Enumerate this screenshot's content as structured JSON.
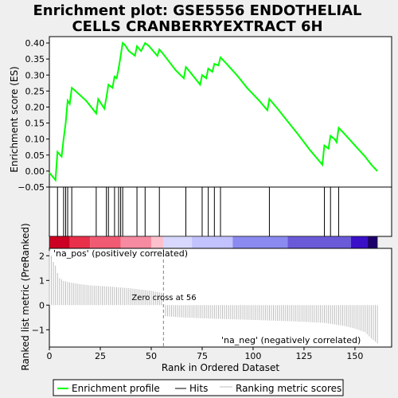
{
  "chart_data": {
    "type": "line",
    "title_line1": "Enrichment plot: GSE5556 ENDOTHELIAL",
    "title_line2": "CELLS CRANBERRYEXTRACT 6H",
    "xlabel": "Rank in Ordered Dataset",
    "ylabel_top": "Enrichment score (ES)",
    "ylabel_bottom": "Ranked list metric (PreRanked)",
    "xlim": [
      0,
      168
    ],
    "x_ticks": [
      "0",
      "25",
      "50",
      "75",
      "100",
      "125",
      "150"
    ],
    "es_ylim": [
      -0.05,
      0.42
    ],
    "es_y_ticks": [
      "−0.05",
      "0.00",
      "0.05",
      "0.10",
      "0.15",
      "0.20",
      "0.25",
      "0.30",
      "0.35",
      "0.40"
    ],
    "metric_ylim": [
      -1.7,
      2.3
    ],
    "metric_y_ticks": [
      "−1",
      "0",
      "1",
      "2"
    ],
    "es_curve": {
      "x": [
        0,
        3,
        4,
        6,
        7,
        8,
        9,
        10,
        11,
        12,
        18,
        23,
        24,
        27,
        28,
        29,
        31,
        32,
        33,
        34,
        35,
        36,
        37,
        39,
        42,
        43,
        45,
        47,
        49,
        51,
        53,
        54,
        56,
        59,
        62,
        66,
        67,
        69,
        74,
        75,
        77,
        78,
        80,
        81,
        83,
        84,
        87,
        92,
        97,
        103,
        107,
        108,
        112,
        117,
        122,
        128,
        134,
        135,
        137,
        138,
        140,
        141,
        142,
        145,
        150,
        155,
        158,
        161
      ],
      "y": [
        -0.005,
        -0.028,
        0.06,
        0.045,
        0.1,
        0.15,
        0.22,
        0.21,
        0.26,
        0.255,
        0.22,
        0.18,
        0.225,
        0.195,
        0.23,
        0.27,
        0.26,
        0.295,
        0.29,
        0.32,
        0.36,
        0.4,
        0.395,
        0.375,
        0.36,
        0.39,
        0.375,
        0.4,
        0.39,
        0.375,
        0.36,
        0.38,
        0.365,
        0.34,
        0.315,
        0.29,
        0.325,
        0.31,
        0.27,
        0.3,
        0.29,
        0.32,
        0.31,
        0.335,
        0.33,
        0.355,
        0.335,
        0.3,
        0.26,
        0.22,
        0.19,
        0.225,
        0.195,
        0.155,
        0.115,
        0.065,
        0.02,
        0.08,
        0.07,
        0.11,
        0.1,
        0.09,
        0.135,
        0.115,
        0.08,
        0.045,
        0.02,
        0.0
      ]
    },
    "hits": [
      4,
      7,
      8,
      9,
      11,
      23,
      28,
      29,
      32,
      34,
      35,
      36,
      43,
      47,
      54,
      67,
      75,
      78,
      81,
      84,
      108,
      135,
      138,
      142
    ],
    "metric_points": [
      [
        0,
        2.2
      ],
      [
        1,
        2.0
      ],
      [
        2,
        1.75
      ],
      [
        3,
        1.6
      ],
      [
        4,
        1.3
      ],
      [
        5,
        1.1
      ],
      [
        7,
        0.98
      ],
      [
        10,
        0.92
      ],
      [
        15,
        0.85
      ],
      [
        20,
        0.8
      ],
      [
        30,
        0.75
      ],
      [
        40,
        0.68
      ],
      [
        50,
        0.58
      ],
      [
        55,
        0.5
      ],
      [
        56,
        0.0
      ],
      [
        57,
        -0.45
      ],
      [
        65,
        -0.5
      ],
      [
        80,
        -0.55
      ],
      [
        100,
        -0.6
      ],
      [
        120,
        -0.66
      ],
      [
        135,
        -0.72
      ],
      [
        145,
        -0.85
      ],
      [
        150,
        -0.95
      ],
      [
        155,
        -1.1
      ],
      [
        158,
        -1.35
      ],
      [
        161,
        -1.55
      ]
    ],
    "zero_cross_rank": 56,
    "zero_cross_label": "Zero cross at 56",
    "pos_label": "'na_pos' (positively correlated)",
    "neg_label": "'na_neg' (negatively correlated)",
    "colors": {
      "es_line": "#00ff00",
      "hits": "#000000",
      "metric_bars": "#bebebe",
      "pos_label": "#cc0000",
      "neg_label": "#0000cc",
      "heat_segments": [
        [
          "#cc0022",
          0,
          10
        ],
        [
          "#e8304a",
          10,
          20
        ],
        [
          "#f05a72",
          20,
          35
        ],
        [
          "#f58aa0",
          35,
          50
        ],
        [
          "#fbc0cc",
          50,
          56
        ],
        [
          "#d8d8ff",
          56,
          70
        ],
        [
          "#c2c2ff",
          70,
          90
        ],
        [
          "#8a8af0",
          90,
          117
        ],
        [
          "#6a5ad8",
          117,
          148
        ],
        [
          "#3a10c8",
          148,
          156
        ],
        [
          "#1e006a",
          156,
          161
        ]
      ]
    },
    "legend": [
      "Enrichment profile",
      "Hits",
      "Ranking metric scores"
    ]
  }
}
